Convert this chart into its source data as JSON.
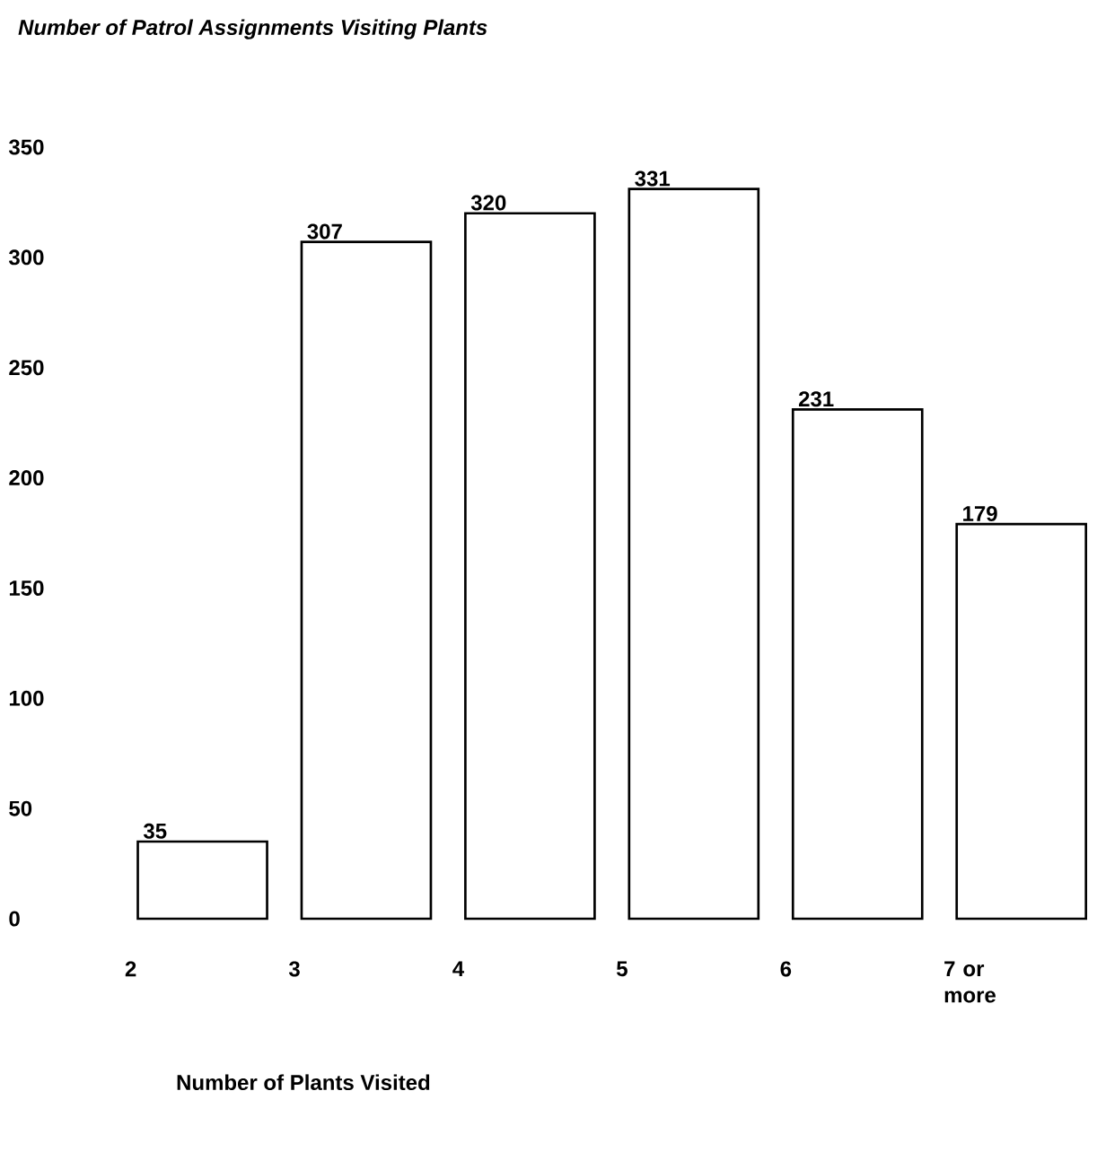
{
  "chart_data": {
    "type": "bar",
    "title": "Number of Patrol Assignments Visiting Plants",
    "xlabel": "Number of Plants Visited",
    "categories": [
      "2",
      "3",
      "4",
      "5",
      "6",
      "7 or more"
    ],
    "values": [
      35,
      307,
      320,
      331,
      231,
      179
    ],
    "color": "#ffffff",
    "ylim": [
      0,
      350
    ],
    "yticks": [
      0,
      50,
      100,
      150,
      200,
      250,
      300,
      350
    ],
    "data_labels": true,
    "grid": false
  }
}
